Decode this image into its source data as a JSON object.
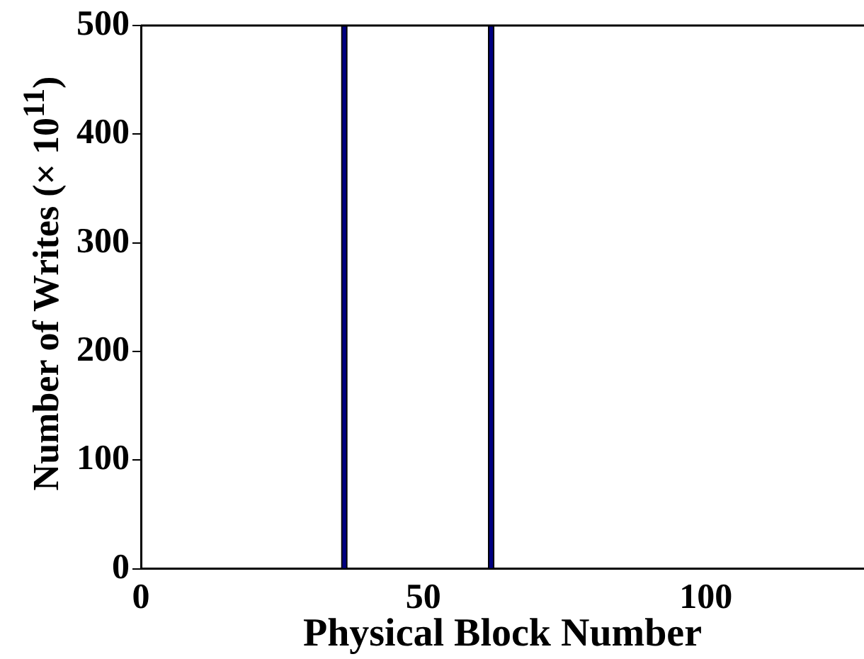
{
  "chart_data": {
    "type": "bar",
    "xlabel": "Physical Block Number",
    "ylabel": "Number of Writes (× 10$^{11}$)",
    "x": [
      36,
      62
    ],
    "series": [
      {
        "color": "#000080",
        "values": [
          500,
          500
        ]
      }
    ],
    "xlim": [
      0,
      128
    ],
    "xticks": [
      0,
      50,
      100
    ],
    "ylim": [
      0,
      500
    ],
    "yticks": [
      0,
      100,
      200,
      300,
      400,
      500
    ],
    "grid": false,
    "legend": false
  }
}
